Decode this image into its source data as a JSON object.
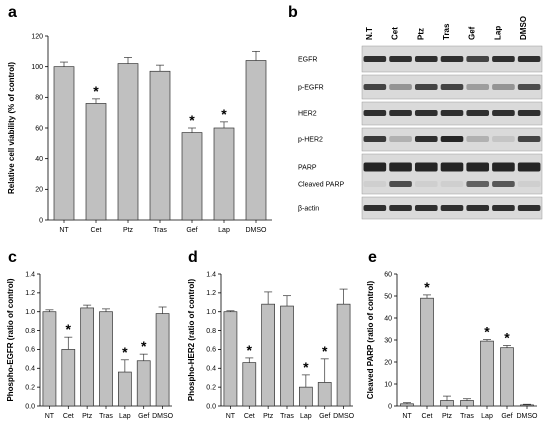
{
  "panels": {
    "a": {
      "letter": "a"
    },
    "b": {
      "letter": "b"
    },
    "c": {
      "letter": "c"
    },
    "d": {
      "letter": "d"
    },
    "e": {
      "letter": "e"
    }
  },
  "chart_data": [
    {
      "id": "a",
      "type": "bar",
      "categories": [
        "NT",
        "Cet",
        "Ptz",
        "Tras",
        "Gef",
        "Lap",
        "DMSO"
      ],
      "values": [
        100,
        76,
        102,
        97,
        57,
        60,
        104
      ],
      "errors": [
        3,
        3,
        4,
        4,
        3,
        4,
        6
      ],
      "significant": [
        false,
        true,
        false,
        false,
        true,
        true,
        false
      ],
      "ylabel": "Relative cell viability (% of control)",
      "ylim": [
        0,
        120
      ],
      "yticks": [
        0,
        20,
        40,
        60,
        80,
        100,
        120
      ],
      "bar_color": "#c0c0c0",
      "grid": false
    },
    {
      "id": "c",
      "type": "bar",
      "categories": [
        "NT",
        "Cet",
        "Ptz",
        "Tras",
        "Lap",
        "Gef",
        "DMSO"
      ],
      "values": [
        1.0,
        0.6,
        1.04,
        1.0,
        0.36,
        0.48,
        0.98
      ],
      "errors": [
        0.02,
        0.13,
        0.03,
        0.03,
        0.13,
        0.07,
        0.07
      ],
      "significant": [
        false,
        true,
        false,
        false,
        true,
        true,
        false
      ],
      "ylabel": "Phospho-EGFR (ratio of control)",
      "ylim": [
        0,
        1.4
      ],
      "yticks": [
        "0.0",
        "0.2",
        "0.4",
        "0.6",
        "0.8",
        "1.0",
        "1.2",
        "1.4"
      ],
      "bar_color": "#c0c0c0",
      "grid": false
    },
    {
      "id": "d",
      "type": "bar",
      "categories": [
        "NT",
        "Cet",
        "Ptz",
        "Tras",
        "Lap",
        "Gef",
        "DMSO"
      ],
      "values": [
        1.0,
        0.46,
        1.08,
        1.06,
        0.2,
        0.25,
        1.08
      ],
      "errors": [
        0.01,
        0.05,
        0.13,
        0.11,
        0.13,
        0.25,
        0.16
      ],
      "significant": [
        false,
        true,
        false,
        false,
        true,
        true,
        false
      ],
      "ylabel": "Phospho-HER2 (ratio of control)",
      "ylim": [
        0,
        1.4
      ],
      "yticks": [
        "0.0",
        "0.2",
        "0.4",
        "0.6",
        "0.8",
        "1.0",
        "1.2",
        "1.4"
      ],
      "bar_color": "#c0c0c0",
      "grid": false
    },
    {
      "id": "e",
      "type": "bar",
      "categories": [
        "NT",
        "Cet",
        "Ptz",
        "Tras",
        "Lap",
        "Gef",
        "DMSO"
      ],
      "values": [
        1,
        49,
        2.5,
        2.5,
        29.5,
        26.5,
        0.5
      ],
      "errors": [
        0.5,
        1.5,
        2,
        0.8,
        0.7,
        1,
        0.3
      ],
      "significant": [
        false,
        true,
        false,
        false,
        true,
        true,
        false
      ],
      "ylabel": "Cleaved PARP (ratio of control)",
      "ylim": [
        0,
        60
      ],
      "yticks": [
        0,
        10,
        20,
        30,
        40,
        50,
        60
      ],
      "bar_color": "#c0c0c0",
      "grid": false
    }
  ],
  "western_blot": {
    "lanes": [
      "N.T",
      "Cet",
      "Ptz",
      "Tras",
      "Gef",
      "Lap",
      "DMSO"
    ],
    "rows": [
      {
        "label": "EGFR",
        "intensity": [
          0.85,
          0.85,
          0.85,
          0.85,
          0.75,
          0.85,
          0.85
        ]
      },
      {
        "label": "p-EGFR",
        "intensity": [
          0.75,
          0.35,
          0.75,
          0.75,
          0.3,
          0.35,
          0.7
        ]
      },
      {
        "label": "HER2",
        "intensity": [
          0.85,
          0.85,
          0.85,
          0.85,
          0.85,
          0.85,
          0.85
        ]
      },
      {
        "label": "p-HER2",
        "intensity": [
          0.8,
          0.2,
          0.85,
          0.9,
          0.2,
          0.1,
          0.75
        ]
      },
      {
        "label": "PARP",
        "intensity": [
          0.9,
          0.9,
          0.9,
          0.9,
          0.9,
          0.9,
          0.9
        ]
      },
      {
        "label": "Cleaved PARP",
        "intensity": [
          0.05,
          0.7,
          0.05,
          0.05,
          0.6,
          0.65,
          0.05
        ]
      },
      {
        "label": "β-actin",
        "intensity": [
          0.85,
          0.85,
          0.85,
          0.85,
          0.85,
          0.85,
          0.85
        ]
      }
    ]
  },
  "significance_marker": "*"
}
